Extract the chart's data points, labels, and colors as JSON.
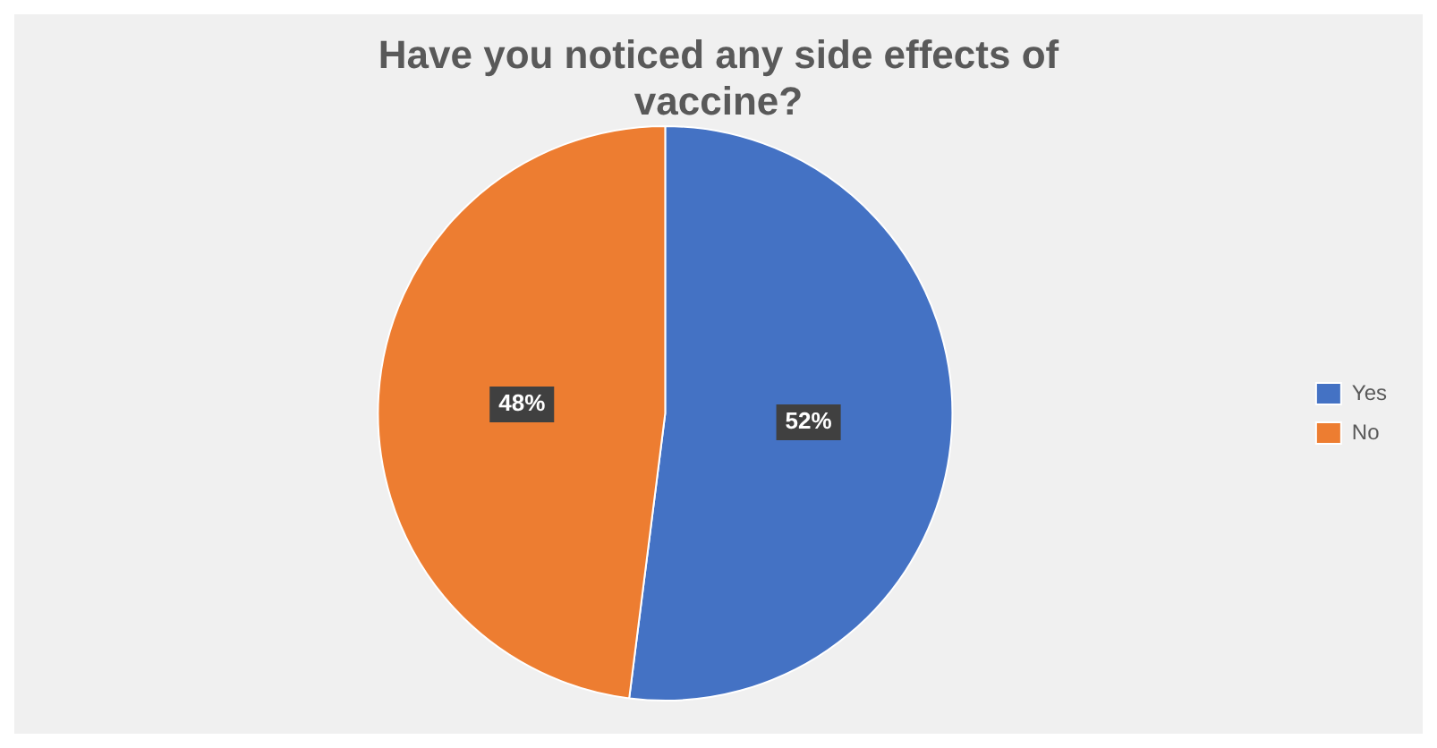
{
  "chart_data": {
    "type": "pie",
    "title": "Have you noticed any side effects of vaccine?",
    "categories": [
      "Yes",
      "No"
    ],
    "values": [
      52,
      48
    ],
    "value_labels": [
      "52%",
      "48%"
    ],
    "colors": [
      "#4472c4",
      "#ed7d31"
    ],
    "legend": "right"
  }
}
